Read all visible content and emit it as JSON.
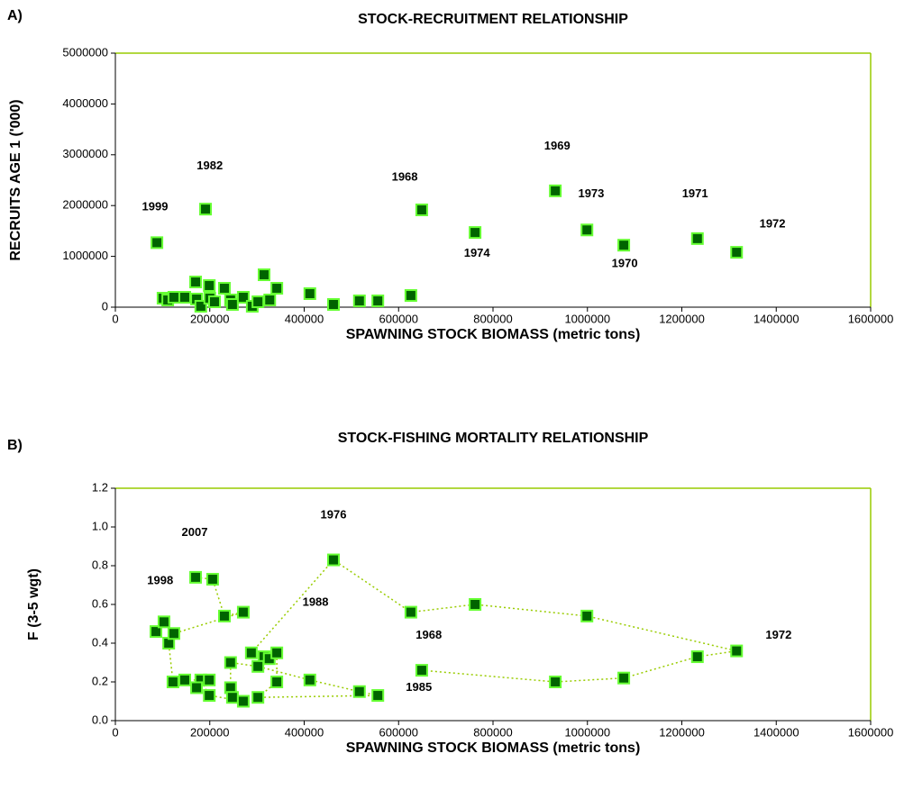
{
  "chart_data": [
    {
      "type": "scatter",
      "panel_label": "A)",
      "title": "STOCK-RECRUITMENT RELATIONSHIP",
      "x_label": "SPAWNING STOCK BIOMASS (metric tons)",
      "y_label": "RECRUITS AGE 1 ('000)",
      "x": [
        88000,
        191000,
        649000,
        762000,
        932000,
        999000,
        1077000,
        1233000,
        1316000,
        101000,
        111000,
        124000,
        147000,
        170000,
        172000,
        181000,
        199000,
        200000,
        210000,
        231000,
        244000,
        248000,
        271000,
        290000,
        302000,
        315000,
        327000,
        342000,
        412000,
        462000,
        517000,
        556000,
        626000
      ],
      "values": [
        1270000,
        1930000,
        1915000,
        1470000,
        2290000,
        1520000,
        1220000,
        1350000,
        1080000,
        177000,
        142000,
        195000,
        195000,
        496000,
        160000,
        18000,
        426000,
        177000,
        106000,
        372000,
        142000,
        53000,
        195000,
        18000,
        106000,
        638000,
        142000,
        372000,
        266000,
        53000,
        124000,
        124000,
        230000
      ],
      "xlim": [
        0,
        1600000
      ],
      "xticks": [
        0,
        200000,
        400000,
        600000,
        800000,
        1000000,
        1200000,
        1400000,
        1600000
      ],
      "ylim": [
        0,
        5000000
      ],
      "yticks": [
        0,
        1000000,
        2000000,
        3000000,
        4000000,
        5000000
      ],
      "marker_color": "#006400",
      "edge_color": "#66ff33",
      "frame_color": "#99cc00",
      "annotations": [
        {
          "text": "1999",
          "x": 84000,
          "y": 1970000
        },
        {
          "text": "1982",
          "x": 200000,
          "y": 2770000
        },
        {
          "text": "1968",
          "x": 613000,
          "y": 2550000
        },
        {
          "text": "1974",
          "x": 766000,
          "y": 1050000
        },
        {
          "text": "1969",
          "x": 936000,
          "y": 3160000
        },
        {
          "text": "1973",
          "x": 1008000,
          "y": 2220000
        },
        {
          "text": "1970",
          "x": 1079000,
          "y": 850000
        },
        {
          "text": "1971",
          "x": 1228000,
          "y": 2220000
        },
        {
          "text": "1972",
          "x": 1392000,
          "y": 1630000
        }
      ]
    },
    {
      "type": "line",
      "panel_label": "B)",
      "title": "STOCK-FISHING MORTALITY RELATIONSHIP",
      "x_label": "SPAWNING STOCK BIOMASS (metric tons)",
      "y_label": "F (3-5 wgt)",
      "x": [
        649000,
        932000,
        1077000,
        1233000,
        1316000,
        999000,
        762000,
        626000,
        462000,
        288000,
        315000,
        326000,
        342000,
        342000,
        302000,
        556000,
        517000,
        412000,
        302000,
        244000,
        244000,
        248000,
        271000,
        199000,
        181000,
        172000,
        199000,
        147000,
        122000,
        113000,
        86000,
        103000,
        124000,
        271000,
        231000,
        206000,
        170000
      ],
      "values": [
        0.26,
        0.2,
        0.22,
        0.33,
        0.36,
        0.54,
        0.6,
        0.56,
        0.83,
        0.35,
        0.33,
        0.32,
        0.35,
        0.2,
        0.12,
        0.13,
        0.15,
        0.21,
        0.28,
        0.3,
        0.17,
        0.12,
        0.1,
        0.13,
        0.21,
        0.17,
        0.21,
        0.21,
        0.2,
        0.4,
        0.46,
        0.51,
        0.45,
        0.56,
        0.54,
        0.73,
        0.74
      ],
      "xlim": [
        0,
        1600000
      ],
      "xticks": [
        0,
        200000,
        400000,
        600000,
        800000,
        1000000,
        1200000,
        1400000,
        1600000
      ],
      "ylim": [
        0,
        1.2
      ],
      "yticks": [
        {
          "value": 0,
          "label": "0.0"
        },
        0.2,
        0.4,
        0.6,
        0.8,
        {
          "value": 1,
          "label": "1.0"
        },
        1.2
      ],
      "marker_color": "#006400",
      "edge_color": "#66ff33",
      "line_color": "#99cc00",
      "line_style": "dotted",
      "frame_color": "#99cc00",
      "annotations": [
        {
          "text": "1998",
          "x": 95000,
          "y": 0.72
        },
        {
          "text": "2007",
          "x": 168000,
          "y": 0.97
        },
        {
          "text": "1976",
          "x": 462000,
          "y": 1.06
        },
        {
          "text": "1988",
          "x": 424000,
          "y": 0.61
        },
        {
          "text": "1968",
          "x": 664000,
          "y": 0.44
        },
        {
          "text": "1985",
          "x": 643000,
          "y": 0.17
        },
        {
          "text": "1972",
          "x": 1405000,
          "y": 0.44
        }
      ]
    }
  ]
}
